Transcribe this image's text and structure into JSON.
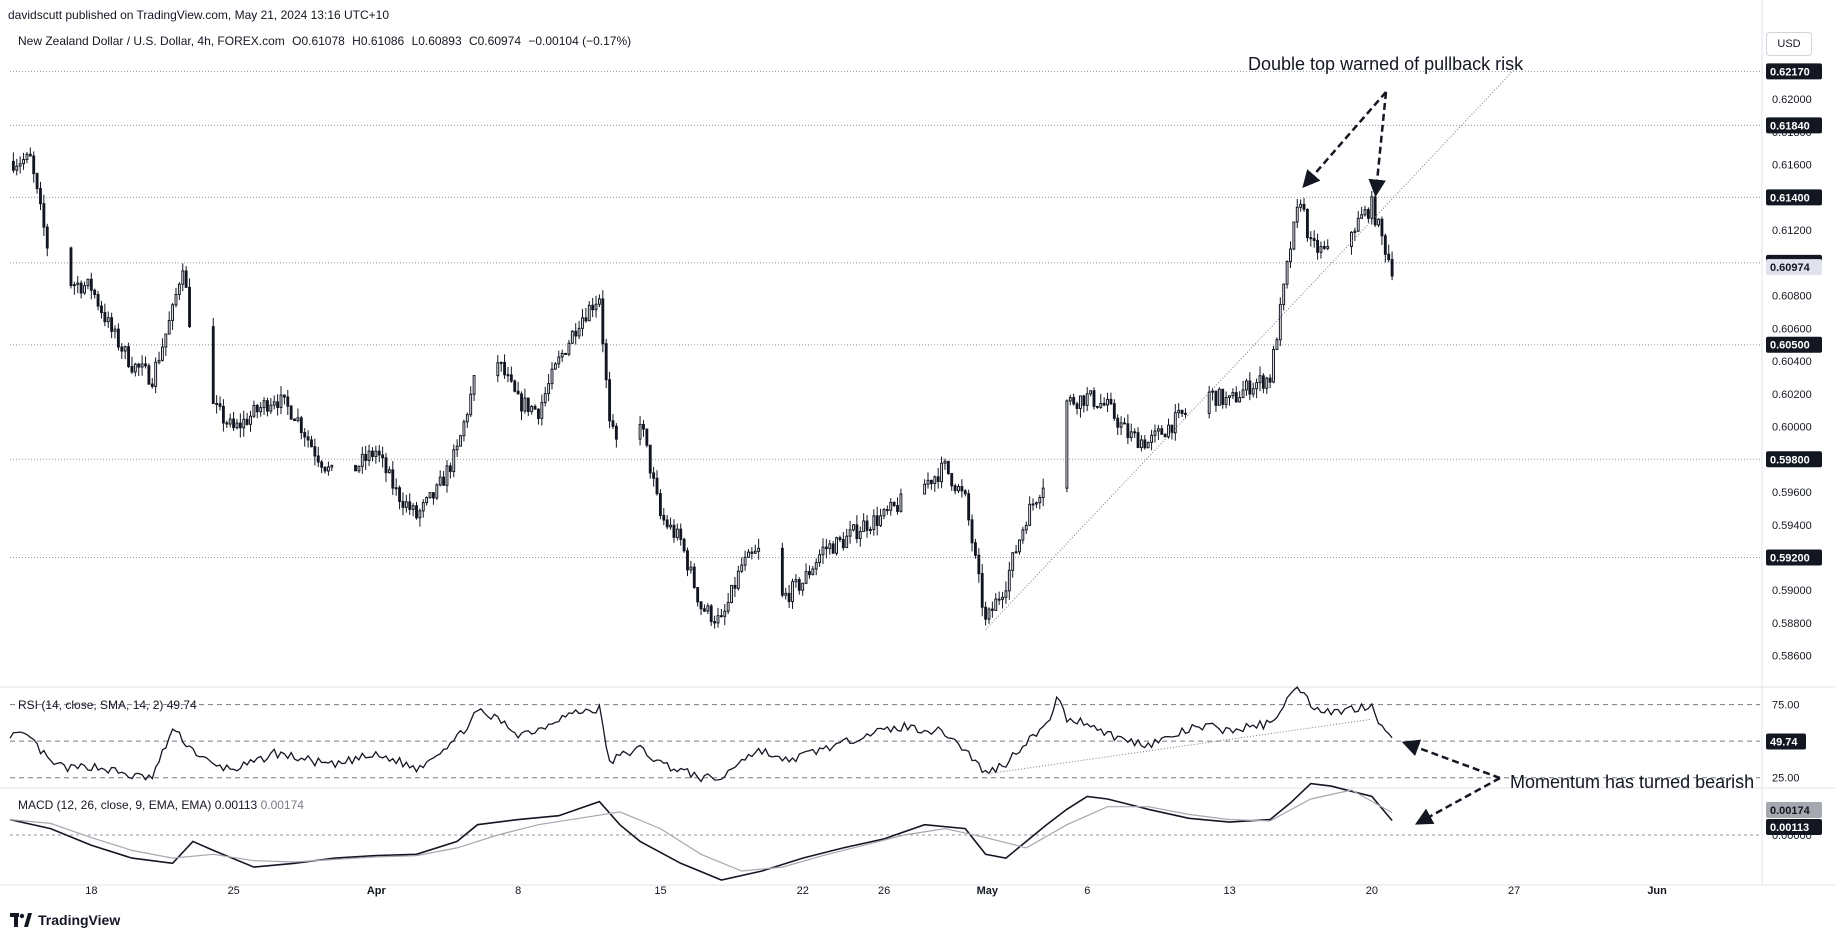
{
  "header": {
    "published": "davidscutt published on TradingView.com, May 21, 2024 13:16 UTC+10",
    "instrument": "New Zealand Dollar / U.S. Dollar, 4h, FOREX.com",
    "ohlc": {
      "open": "O0.61078",
      "high": "H0.61086",
      "low": "L0.60893",
      "close": "C0.60974",
      "change": "−0.00104 (−0.17%)"
    },
    "currency_button": "USD"
  },
  "colors": {
    "up": "#ffffff",
    "down": "#131722",
    "grid": "#b2b5be",
    "text": "#131722",
    "price_tag_bg": "#131722",
    "current_tag_bg": "#e0e3eb",
    "macd_signal": "#a6a8b0"
  },
  "chart_data": [
    {
      "type": "candlestick",
      "name": "NZDUSD 4h",
      "x_ticks": [
        "18",
        "25",
        "Apr",
        "8",
        "15",
        "22",
        "26",
        "May",
        "6",
        "13",
        "20",
        "27",
        "Jun"
      ],
      "y_ticks": [
        "0.58600",
        "0.58800",
        "0.59000",
        "0.59200",
        "0.59400",
        "0.59600",
        "0.59800",
        "0.60000",
        "0.60200",
        "0.60400",
        "0.60600",
        "0.60800",
        "0.61000",
        "0.61200",
        "0.61400",
        "0.61600",
        "0.61800",
        "0.62000",
        "0.62170"
      ],
      "ylim": [
        0.5847,
        0.6227
      ],
      "horizontal_levels": [
        {
          "value": 0.6217,
          "label": "0.62170"
        },
        {
          "value": 0.6184,
          "label": "0.61840"
        },
        {
          "value": 0.614,
          "label": "0.61400"
        },
        {
          "value": 0.61,
          "label": "0.61000"
        },
        {
          "value": 0.605,
          "label": "0.60500"
        },
        {
          "value": 0.598,
          "label": "0.59800"
        },
        {
          "value": 0.592,
          "label": "0.59200"
        }
      ],
      "current_price": {
        "value": 0.60974,
        "label": "0.60974"
      },
      "trendline": [
        {
          "date": "2024-05-01",
          "value": 0.5876
        },
        {
          "date": "2024-05-27",
          "value": 0.6218
        }
      ],
      "annotation": "Double top warned of pullback risk",
      "path": [
        [
          "2024-03-14",
          0.6162
        ],
        [
          "2024-03-15",
          0.6163
        ],
        [
          "2024-03-16",
          0.61
        ],
        [
          "2024-03-17",
          0.6088
        ],
        [
          "2024-03-18",
          0.6085
        ],
        [
          "2024-03-19",
          0.6058
        ],
        [
          "2024-03-20",
          0.6038
        ],
        [
          "2024-03-21",
          0.603
        ],
        [
          "2024-03-22",
          0.607
        ],
        [
          "2024-03-22 12:00",
          0.61
        ],
        [
          "2024-03-23",
          0.6048
        ],
        [
          "2024-03-24",
          0.6012
        ],
        [
          "2024-03-25",
          0.5998
        ],
        [
          "2024-03-26",
          0.6008
        ],
        [
          "2024-03-27",
          0.6018
        ],
        [
          "2024-03-28",
          0.6008
        ],
        [
          "2024-03-29",
          0.5985
        ],
        [
          "2024-03-30",
          0.5968
        ],
        [
          "2024-03-31",
          0.5975
        ],
        [
          "2024-04-01",
          0.5985
        ],
        [
          "2024-04-02",
          0.596
        ],
        [
          "2024-04-03",
          0.5945
        ],
        [
          "2024-04-04",
          0.596
        ],
        [
          "2024-04-05",
          0.5985
        ],
        [
          "2024-04-06",
          0.6035
        ],
        [
          "2024-04-07",
          0.604
        ],
        [
          "2024-04-08",
          0.6015
        ],
        [
          "2024-04-09",
          0.601
        ],
        [
          "2024-04-10",
          0.604
        ],
        [
          "2024-04-11",
          0.6065
        ],
        [
          "2024-04-12",
          0.608
        ],
        [
          "2024-04-12 12:00",
          0.6
        ],
        [
          "2024-04-13",
          0.5985
        ],
        [
          "2024-04-14",
          0.6005
        ],
        [
          "2024-04-15",
          0.5945
        ],
        [
          "2024-04-16",
          0.593
        ],
        [
          "2024-04-17",
          0.589
        ],
        [
          "2024-04-18",
          0.588
        ],
        [
          "2024-04-19",
          0.5915
        ],
        [
          "2024-04-20",
          0.5925
        ],
        [
          "2024-04-21",
          0.5895
        ],
        [
          "2024-04-22",
          0.5905
        ],
        [
          "2024-04-23",
          0.5925
        ],
        [
          "2024-04-24",
          0.593
        ],
        [
          "2024-04-25",
          0.594
        ],
        [
          "2024-04-26",
          0.5945
        ],
        [
          "2024-04-27",
          0.5955
        ],
        [
          "2024-04-28",
          0.5965
        ],
        [
          "2024-04-29",
          0.5975
        ],
        [
          "2024-04-30",
          0.5955
        ],
        [
          "2024-05-01",
          0.588
        ],
        [
          "2024-05-02",
          0.5905
        ],
        [
          "2024-05-03",
          0.5945
        ],
        [
          "2024-05-04",
          0.597
        ],
        [
          "2024-05-04 12:00",
          0.6045
        ],
        [
          "2024-05-05",
          0.6015
        ],
        [
          "2024-05-06",
          0.6018
        ],
        [
          "2024-05-07",
          0.6012
        ],
        [
          "2024-05-08",
          0.5995
        ],
        [
          "2024-05-09",
          0.599
        ],
        [
          "2024-05-10",
          0.6
        ],
        [
          "2024-05-11",
          0.601
        ],
        [
          "2024-05-12",
          0.602
        ],
        [
          "2024-05-13",
          0.6015
        ],
        [
          "2024-05-14",
          0.6025
        ],
        [
          "2024-05-15",
          0.603
        ],
        [
          "2024-05-15 12:00",
          0.607
        ],
        [
          "2024-05-16",
          0.611
        ],
        [
          "2024-05-16 12:00",
          0.614
        ],
        [
          "2024-05-17",
          0.611
        ],
        [
          "2024-05-18",
          0.6105
        ],
        [
          "2024-05-19",
          0.612
        ],
        [
          "2024-05-20",
          0.6135
        ],
        [
          "2024-05-20 12:00",
          0.6115
        ],
        [
          "2024-05-21",
          0.6097
        ]
      ]
    },
    {
      "type": "line",
      "name": "RSI",
      "legend": "RSI (14, close, SMA, 14, 2)",
      "legend_value": "49.74",
      "y_ticks": [
        "75.00",
        "25.00"
      ],
      "ylim": [
        20,
        85
      ],
      "bands": [
        75,
        50,
        25
      ],
      "current": {
        "value": 49.74,
        "label": "49.74"
      },
      "trendline": [
        {
          "date": "2024-05-01",
          "value": 27.5
        },
        {
          "date": "2024-05-20",
          "value": 65
        }
      ],
      "annotation": "Momentum has turned bearish",
      "path": [
        [
          "2024-03-14",
          55
        ],
        [
          "2024-03-15",
          52
        ],
        [
          "2024-03-16",
          35
        ],
        [
          "2024-03-17",
          31
        ],
        [
          "2024-03-18",
          33
        ],
        [
          "2024-03-19",
          30
        ],
        [
          "2024-03-20",
          26
        ],
        [
          "2024-03-21",
          25
        ],
        [
          "2024-03-22",
          58
        ],
        [
          "2024-03-23",
          44
        ],
        [
          "2024-03-24",
          33
        ],
        [
          "2024-03-25",
          31
        ],
        [
          "2024-03-26",
          35
        ],
        [
          "2024-03-27",
          42
        ],
        [
          "2024-03-28",
          39
        ],
        [
          "2024-03-29",
          36
        ],
        [
          "2024-03-30",
          33
        ],
        [
          "2024-03-31",
          38
        ],
        [
          "2024-04-01",
          40
        ],
        [
          "2024-04-02",
          37
        ],
        [
          "2024-04-03",
          31
        ],
        [
          "2024-04-04",
          42
        ],
        [
          "2024-04-05",
          52
        ],
        [
          "2024-04-06",
          70
        ],
        [
          "2024-04-07",
          65
        ],
        [
          "2024-04-08",
          55
        ],
        [
          "2024-04-09",
          58
        ],
        [
          "2024-04-10",
          66
        ],
        [
          "2024-04-11",
          70
        ],
        [
          "2024-04-12",
          72
        ],
        [
          "2024-04-12 12:00",
          35
        ],
        [
          "2024-04-13",
          40
        ],
        [
          "2024-04-14",
          45
        ],
        [
          "2024-04-15",
          35
        ],
        [
          "2024-04-16",
          30
        ],
        [
          "2024-04-17",
          25
        ],
        [
          "2024-04-18",
          24
        ],
        [
          "2024-04-19",
          38
        ],
        [
          "2024-04-20",
          44
        ],
        [
          "2024-04-21",
          36
        ],
        [
          "2024-04-22",
          40
        ],
        [
          "2024-04-23",
          45
        ],
        [
          "2024-04-24",
          48
        ],
        [
          "2024-04-25",
          55
        ],
        [
          "2024-04-26",
          57
        ],
        [
          "2024-04-27",
          60
        ],
        [
          "2024-04-28",
          58
        ],
        [
          "2024-04-29",
          56
        ],
        [
          "2024-04-30",
          44
        ],
        [
          "2024-05-01",
          28
        ],
        [
          "2024-05-02",
          35
        ],
        [
          "2024-05-03",
          50
        ],
        [
          "2024-05-04",
          60
        ],
        [
          "2024-05-04 12:00",
          80
        ],
        [
          "2024-05-05",
          65
        ],
        [
          "2024-05-06",
          63
        ],
        [
          "2024-05-07",
          55
        ],
        [
          "2024-05-08",
          50
        ],
        [
          "2024-05-09",
          48
        ],
        [
          "2024-05-10",
          52
        ],
        [
          "2024-05-11",
          58
        ],
        [
          "2024-05-12",
          60
        ],
        [
          "2024-05-13",
          57
        ],
        [
          "2024-05-14",
          60
        ],
        [
          "2024-05-15",
          62
        ],
        [
          "2024-05-15 12:00",
          72
        ],
        [
          "2024-05-16",
          82
        ],
        [
          "2024-05-16 12:00",
          86
        ],
        [
          "2024-05-17",
          75
        ],
        [
          "2024-05-18",
          70
        ],
        [
          "2024-05-19",
          72
        ],
        [
          "2024-05-20",
          75
        ],
        [
          "2024-05-20 12:00",
          60
        ],
        [
          "2024-05-21",
          49.74
        ]
      ]
    },
    {
      "type": "line",
      "name": "MACD",
      "legend": "MACD (12, 26, close, 9, EMA, EMA)",
      "legend_values": [
        "0.00113",
        "0.00174"
      ],
      "y_ticks": [
        "0.00000"
      ],
      "ylim": [
        -0.0035,
        0.0035
      ],
      "tags": [
        {
          "value": 0.00174,
          "label": "0.00174"
        },
        {
          "value": 0.00113,
          "label": "0.00113"
        }
      ],
      "series": [
        {
          "name": "MACD",
          "path": [
            [
              "2024-03-14",
              0.0012
            ],
            [
              "2024-03-16",
              0.0005
            ],
            [
              "2024-03-18",
              -0.0008
            ],
            [
              "2024-03-20",
              -0.0018
            ],
            [
              "2024-03-22",
              -0.0022
            ],
            [
              "2024-03-23",
              -0.0005
            ],
            [
              "2024-03-24",
              -0.0012
            ],
            [
              "2024-03-26",
              -0.0025
            ],
            [
              "2024-03-28",
              -0.0022
            ],
            [
              "2024-03-30",
              -0.0018
            ],
            [
              "2024-04-01",
              -0.0016
            ],
            [
              "2024-04-03",
              -0.0015
            ],
            [
              "2024-04-05",
              -0.0005
            ],
            [
              "2024-04-06",
              0.0008
            ],
            [
              "2024-04-08",
              0.0012
            ],
            [
              "2024-04-10",
              0.0015
            ],
            [
              "2024-04-12",
              0.0026
            ],
            [
              "2024-04-13",
              0.0008
            ],
            [
              "2024-04-14",
              -0.0005
            ],
            [
              "2024-04-16",
              -0.0022
            ],
            [
              "2024-04-18",
              -0.0035
            ],
            [
              "2024-04-20",
              -0.0028
            ],
            [
              "2024-04-22",
              -0.0018
            ],
            [
              "2024-04-24",
              -0.001
            ],
            [
              "2024-04-26",
              -0.0003
            ],
            [
              "2024-04-28",
              0.0008
            ],
            [
              "2024-04-30",
              0.0005
            ],
            [
              "2024-05-01",
              -0.0015
            ],
            [
              "2024-05-02",
              -0.0018
            ],
            [
              "2024-05-04",
              0.0008
            ],
            [
              "2024-05-05",
              0.002
            ],
            [
              "2024-05-06",
              0.003
            ],
            [
              "2024-05-07",
              0.0028
            ],
            [
              "2024-05-09",
              0.002
            ],
            [
              "2024-05-11",
              0.0013
            ],
            [
              "2024-05-13",
              0.001
            ],
            [
              "2024-05-15",
              0.0012
            ],
            [
              "2024-05-16",
              0.0025
            ],
            [
              "2024-05-17",
              0.004
            ],
            [
              "2024-05-18",
              0.0038
            ],
            [
              "2024-05-19",
              0.0034
            ],
            [
              "2024-05-20",
              0.003
            ],
            [
              "2024-05-21",
              0.00113
            ]
          ]
        },
        {
          "name": "Signal",
          "path": [
            [
              "2024-03-14",
              0.0012
            ],
            [
              "2024-03-16",
              0.0009
            ],
            [
              "2024-03-18",
              -0.0002
            ],
            [
              "2024-03-20",
              -0.0012
            ],
            [
              "2024-03-22",
              -0.0018
            ],
            [
              "2024-03-24",
              -0.0015
            ],
            [
              "2024-03-26",
              -0.002
            ],
            [
              "2024-03-28",
              -0.0021
            ],
            [
              "2024-03-30",
              -0.0019
            ],
            [
              "2024-04-01",
              -0.0017
            ],
            [
              "2024-04-03",
              -0.0016
            ],
            [
              "2024-04-05",
              -0.001
            ],
            [
              "2024-04-07",
              0.0
            ],
            [
              "2024-04-09",
              0.0008
            ],
            [
              "2024-04-11",
              0.0013
            ],
            [
              "2024-04-13",
              0.0018
            ],
            [
              "2024-04-15",
              0.0005
            ],
            [
              "2024-04-17",
              -0.0015
            ],
            [
              "2024-04-19",
              -0.0028
            ],
            [
              "2024-04-21",
              -0.0025
            ],
            [
              "2024-04-23",
              -0.0016
            ],
            [
              "2024-04-25",
              -0.0008
            ],
            [
              "2024-04-27",
              0.0
            ],
            [
              "2024-04-29",
              0.0005
            ],
            [
              "2024-05-01",
              -0.0002
            ],
            [
              "2024-05-03",
              -0.001
            ],
            [
              "2024-05-05",
              0.0008
            ],
            [
              "2024-05-07",
              0.0022
            ],
            [
              "2024-05-09",
              0.0022
            ],
            [
              "2024-05-11",
              0.0016
            ],
            [
              "2024-05-13",
              0.0012
            ],
            [
              "2024-05-15",
              0.0011
            ],
            [
              "2024-05-17",
              0.0028
            ],
            [
              "2024-05-19",
              0.0035
            ],
            [
              "2024-05-21",
              0.00174
            ]
          ]
        }
      ]
    }
  ],
  "branding": "TradingView"
}
